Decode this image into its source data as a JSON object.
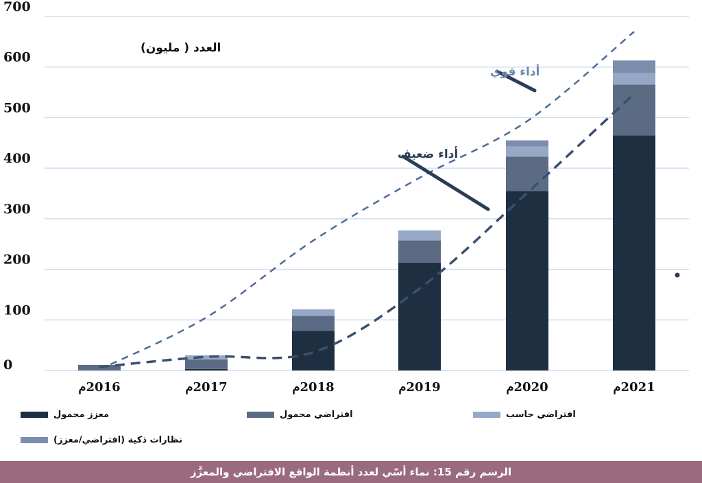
{
  "chart_data": {
    "type": "bar",
    "stacked": true,
    "ylabel": "العدد ( مليون)",
    "ylim": [
      0,
      700
    ],
    "yticks": [
      0,
      100,
      200,
      300,
      400,
      500,
      600,
      700
    ],
    "grid": true,
    "categories": [
      "2016م",
      "2017م",
      "2018م",
      "2019م",
      "2020م",
      "2021م"
    ],
    "series": [
      {
        "name": "معزز محمول",
        "color": "#1f2f42",
        "values": [
          0,
          3,
          78,
          213,
          355,
          465
        ]
      },
      {
        "name": "افتراضي محمول",
        "color": "#5b6b84",
        "values": [
          11,
          19,
          30,
          44,
          68,
          100
        ]
      },
      {
        "name": "افتراضي حاسب",
        "color": "#97a8c6",
        "values": [
          0,
          8,
          13,
          20,
          20,
          23
        ]
      },
      {
        "name": "نظارات ذكية (افتراضي/معزز)",
        "color": "#7d8dad",
        "values": [
          0,
          0,
          0,
          0,
          12,
          25
        ]
      }
    ],
    "lines": [
      {
        "name": "أداء قوي",
        "color": "#4d6b98",
        "values": [
          2,
          105,
          257,
          381,
          493,
          670
        ]
      },
      {
        "name": "أداء ضعيف",
        "color": "#3a5070",
        "values": [
          7,
          27,
          36,
          162,
          351,
          547
        ]
      }
    ],
    "legend_position": "bottom"
  },
  "caption": "الرسم رقم 15:  نماء أسّي لعدد أنظمة الواقع الافتراضي والمعزَّز"
}
